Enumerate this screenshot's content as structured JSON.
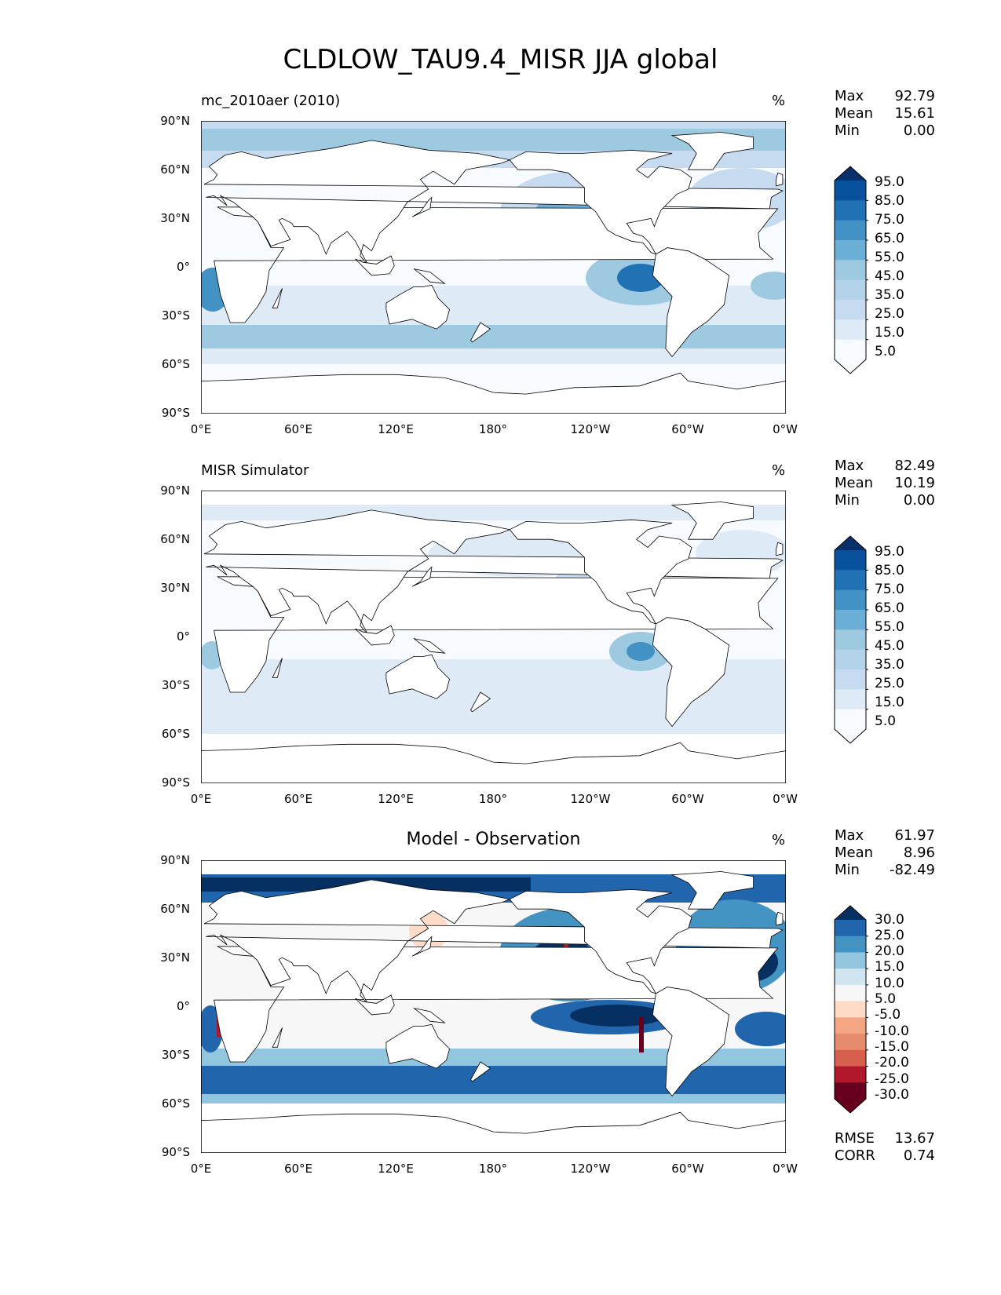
{
  "title": "CLDLOW_TAU9.4_MISR JJA global",
  "colors": {
    "blues": [
      "#f7fbff",
      "#deebf7",
      "#c6dbef",
      "#9ecae1",
      "#6baed6",
      "#4292c6",
      "#2171b5",
      "#08519c",
      "#08306b"
    ],
    "diff": [
      "#67001f",
      "#b2182b",
      "#d6604d",
      "#f4a582",
      "#fddbc7",
      "#f7f7f7",
      "#d1e5f0",
      "#92c5de",
      "#4393c3",
      "#2166ac",
      "#053061"
    ],
    "land": "#ffffff",
    "coast": "#000000"
  },
  "axes": {
    "y_ticks": [
      "90°N",
      "60°N",
      "30°N",
      "0°",
      "30°S",
      "60°S",
      "90°S"
    ],
    "x_ticks": [
      "0°E",
      "60°E",
      "120°E",
      "180°",
      "120°W",
      "60°W",
      "0°W"
    ]
  },
  "chart_data": [
    {
      "type": "heatmap",
      "title": "mc_2010aer (2010)",
      "units": "%",
      "stats": {
        "max_label": "Max",
        "max": "92.79",
        "mean_label": "Mean",
        "mean": "15.61",
        "min_label": "Min",
        "min": "0.00"
      },
      "colorbar_levels": [
        "95.0",
        "85.0",
        "75.0",
        "65.0",
        "55.0",
        "45.0",
        "35.0",
        "25.0",
        "15.0",
        "5.0"
      ],
      "xlim": [
        0,
        360
      ],
      "ylim": [
        -90,
        90
      ]
    },
    {
      "type": "heatmap",
      "title": "MISR Simulator",
      "units": "%",
      "stats": {
        "max_label": "Max",
        "max": "82.49",
        "mean_label": "Mean",
        "mean": "10.19",
        "min_label": "Min",
        "min": "0.00"
      },
      "colorbar_levels": [
        "95.0",
        "85.0",
        "75.0",
        "65.0",
        "55.0",
        "45.0",
        "35.0",
        "25.0",
        "15.0",
        "5.0"
      ],
      "xlim": [
        0,
        360
      ],
      "ylim": [
        -90,
        90
      ]
    },
    {
      "type": "heatmap",
      "title": "Model - Observation",
      "units": "%",
      "stats": {
        "max_label": "Max",
        "max": "61.97",
        "mean_label": "Mean",
        "mean": "8.96",
        "min_label": "Min",
        "min": "-82.49"
      },
      "colorbar_levels": [
        "30.0",
        "25.0",
        "20.0",
        "15.0",
        "10.0",
        "5.0",
        "-5.0",
        "-10.0",
        "-15.0",
        "-20.0",
        "-25.0",
        "-30.0"
      ],
      "metrics": {
        "rmse_label": "RMSE",
        "rmse": "13.67",
        "corr_label": "CORR",
        "corr": "0.74"
      },
      "xlim": [
        0,
        360
      ],
      "ylim": [
        -90,
        90
      ]
    }
  ]
}
